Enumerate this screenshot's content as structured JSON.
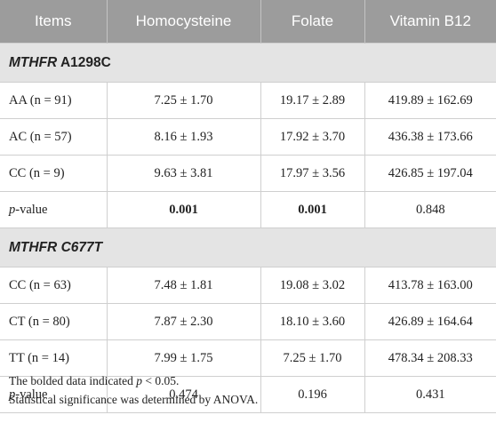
{
  "headers": [
    "Items",
    "Homocysteine",
    "Folate",
    "Vitamin B12"
  ],
  "groups": [
    {
      "gene": "MTHFR",
      "variant": "A1298C",
      "rows": [
        {
          "label": "AA (n = 91)",
          "homocysteine": "7.25 ± 1.70",
          "folate": "19.17 ± 2.89",
          "b12": "419.89 ± 162.69"
        },
        {
          "label": "AC (n = 57)",
          "homocysteine": "8.16 ± 1.93",
          "folate": "17.92 ± 3.70",
          "b12": "436.38 ± 173.66"
        },
        {
          "label": "CC (n = 9)",
          "homocysteine": "9.63 ± 3.81",
          "folate": "17.97 ± 3.56",
          "b12": "426.85 ± 197.04"
        }
      ],
      "pvalue": {
        "prefix": "p",
        "suffix": "-value",
        "homocysteine": "0.001",
        "folate": "0.001",
        "b12": "0.848"
      }
    },
    {
      "gene": "MTHFR",
      "variant": "C677T",
      "rows": [
        {
          "label": "CC (n = 63)",
          "homocysteine": "7.48 ± 1.81",
          "folate": "19.08 ± 3.02",
          "b12": "413.78 ± 163.00"
        },
        {
          "label": "CT (n = 80)",
          "homocysteine": "7.87 ± 2.30",
          "folate": "18.10 ± 3.60",
          "b12": "426.89 ± 164.64"
        },
        {
          "label": "TT (n = 14)",
          "homocysteine": "7.99 ± 1.75",
          "folate": "7.25 ± 1.70",
          "b12": "478.34 ± 208.33"
        }
      ],
      "pvalue": {
        "prefix": "p",
        "suffix": "-value",
        "homocysteine": "0.474",
        "folate": "0.196",
        "b12": "0.431"
      }
    }
  ],
  "notes": {
    "line1_before": "The bolded data indicated ",
    "line1_p": "p",
    "line1_after": " < 0.05.",
    "line2": "Statistical significance was determined by ANOVA."
  }
}
